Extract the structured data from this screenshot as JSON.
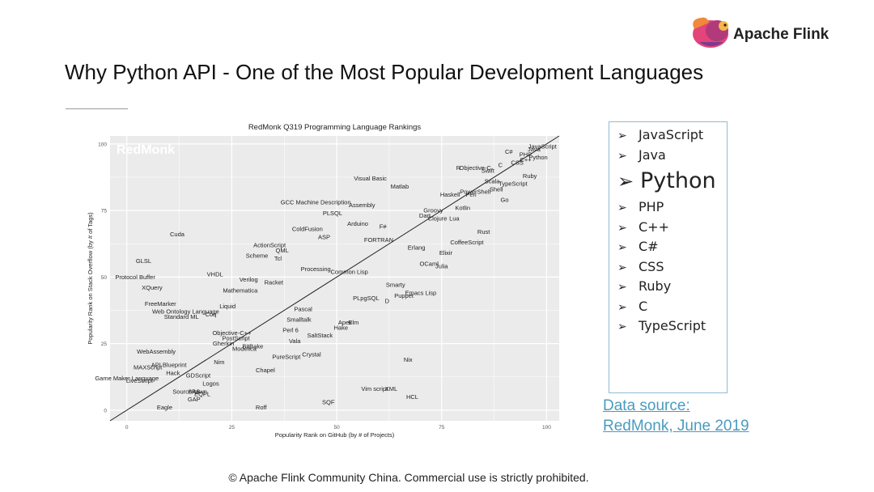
{
  "slide": {
    "title": "Why Python API - One of the Most Popular Development Languages",
    "logo_text": "Apache Flink",
    "languages": [
      "JavaScript",
      "Java",
      "Python",
      "PHP",
      "C++",
      "C#",
      "CSS",
      "Ruby",
      "C",
      "TypeScript"
    ],
    "highlight_language": "Python",
    "bullet_glyph": "➢",
    "source_line1": "Data source: ",
    "source_line2": "RedMonk, June 2019",
    "footer": "© Apache Flink Community China. Commercial use is strictly prohibited."
  },
  "chart_data": {
    "type": "scatter",
    "title": "RedMonk Q319 Programming Language Rankings",
    "watermark": "RedMonk",
    "xlabel": "Popularity Rank on GitHub (by # of Projects)",
    "ylabel": "Popularity Rank on Stack Overflow (by # of Tags)",
    "xlim": [
      -4,
      103
    ],
    "ylim": [
      -4,
      103
    ],
    "xticks": [
      0,
      25,
      50,
      75,
      100
    ],
    "yticks": [
      0,
      25,
      50,
      75,
      100
    ],
    "grid": true,
    "trend_line": {
      "from": [
        -4,
        -4
      ],
      "to": [
        103,
        103
      ]
    },
    "colors": {
      "panel": "#ebebeb",
      "grid": "#ffffff",
      "line": "#222222",
      "label": "#222222"
    },
    "points": [
      {
        "label": "JavaScript",
        "x": 99,
        "y": 99
      },
      {
        "label": "Java",
        "x": 97,
        "y": 98
      },
      {
        "label": "C#",
        "x": 91,
        "y": 97
      },
      {
        "label": "PHP",
        "x": 95,
        "y": 96
      },
      {
        "label": "Python",
        "x": 98,
        "y": 95
      },
      {
        "label": "CSS",
        "x": 93,
        "y": 93
      },
      {
        "label": "C++",
        "x": 95,
        "y": 94
      },
      {
        "label": "C",
        "x": 89,
        "y": 92
      },
      {
        "label": "R",
        "x": 79,
        "y": 91
      },
      {
        "label": "Objective-C",
        "x": 83,
        "y": 91
      },
      {
        "label": "Swift",
        "x": 86,
        "y": 90
      },
      {
        "label": "Ruby",
        "x": 96,
        "y": 88
      },
      {
        "label": "Scala",
        "x": 87,
        "y": 86
      },
      {
        "label": "TypeScript",
        "x": 92,
        "y": 85
      },
      {
        "label": "Shell",
        "x": 88,
        "y": 83
      },
      {
        "label": "PowerShell",
        "x": 83,
        "y": 82
      },
      {
        "label": "Perl",
        "x": 82,
        "y": 81
      },
      {
        "label": "Haskell",
        "x": 77,
        "y": 81
      },
      {
        "label": "Go",
        "x": 90,
        "y": 79
      },
      {
        "label": "Kotlin",
        "x": 80,
        "y": 76
      },
      {
        "label": "Groovy",
        "x": 73,
        "y": 75
      },
      {
        "label": "Dart",
        "x": 71,
        "y": 73
      },
      {
        "label": "Clojure",
        "x": 74,
        "y": 72
      },
      {
        "label": "Lua",
        "x": 78,
        "y": 72
      },
      {
        "label": "Rust",
        "x": 85,
        "y": 67
      },
      {
        "label": "CoffeeScript",
        "x": 81,
        "y": 63
      },
      {
        "label": "Elixir",
        "x": 76,
        "y": 59
      },
      {
        "label": "Erlang",
        "x": 69,
        "y": 61
      },
      {
        "label": "OCaml",
        "x": 72,
        "y": 55
      },
      {
        "label": "Julia",
        "x": 75,
        "y": 54
      },
      {
        "label": "Visual Basic",
        "x": 58,
        "y": 87
      },
      {
        "label": "Matlab",
        "x": 65,
        "y": 84
      },
      {
        "label": "GCC Machine Description",
        "x": 45,
        "y": 78
      },
      {
        "label": "Assembly",
        "x": 56,
        "y": 77
      },
      {
        "label": "PLSQL",
        "x": 49,
        "y": 74
      },
      {
        "label": "Arduino",
        "x": 55,
        "y": 70
      },
      {
        "label": "F#",
        "x": 61,
        "y": 69
      },
      {
        "label": "ColdFusion",
        "x": 43,
        "y": 68
      },
      {
        "label": "ASP",
        "x": 47,
        "y": 65
      },
      {
        "label": "FORTRAN",
        "x": 60,
        "y": 64
      },
      {
        "label": "ActionScript",
        "x": 34,
        "y": 62
      },
      {
        "label": "QML",
        "x": 37,
        "y": 60
      },
      {
        "label": "Scheme",
        "x": 31,
        "y": 58
      },
      {
        "label": "Tcl",
        "x": 36,
        "y": 57
      },
      {
        "label": "Cuda",
        "x": 12,
        "y": 66
      },
      {
        "label": "GLSL",
        "x": 4,
        "y": 56
      },
      {
        "label": "Processing",
        "x": 45,
        "y": 53
      },
      {
        "label": "Common Lisp",
        "x": 53,
        "y": 52
      },
      {
        "label": "VHDL",
        "x": 21,
        "y": 51
      },
      {
        "label": "Verilog",
        "x": 29,
        "y": 49
      },
      {
        "label": "Racket",
        "x": 35,
        "y": 48
      },
      {
        "label": "Protocol Buffer",
        "x": 2,
        "y": 50
      },
      {
        "label": "XQuery",
        "x": 6,
        "y": 46
      },
      {
        "label": "Mathematica",
        "x": 27,
        "y": 45
      },
      {
        "label": "Smarty",
        "x": 64,
        "y": 47
      },
      {
        "label": "Emacs Lisp",
        "x": 70,
        "y": 44
      },
      {
        "label": "Puppet",
        "x": 66,
        "y": 43
      },
      {
        "label": "PLpgSQL",
        "x": 57,
        "y": 42
      },
      {
        "label": "D",
        "x": 62,
        "y": 41
      },
      {
        "label": "FreeMarker",
        "x": 8,
        "y": 40
      },
      {
        "label": "Liquid",
        "x": 24,
        "y": 39
      },
      {
        "label": "Pascal",
        "x": 42,
        "y": 38
      },
      {
        "label": "Web Ontology Language",
        "x": 14,
        "y": 37
      },
      {
        "label": "Standard ML",
        "x": 13,
        "y": 35
      },
      {
        "label": "Coq",
        "x": 20,
        "y": 36
      },
      {
        "label": "Smalltalk",
        "x": 41,
        "y": 34
      },
      {
        "label": "Apex",
        "x": 52,
        "y": 33
      },
      {
        "label": "Elm",
        "x": 54,
        "y": 33
      },
      {
        "label": "Hake",
        "x": 51,
        "y": 31
      },
      {
        "label": "Perl 6",
        "x": 39,
        "y": 30
      },
      {
        "label": "SaltStack",
        "x": 46,
        "y": 28
      },
      {
        "label": "Objective-C++",
        "x": 25,
        "y": 29
      },
      {
        "label": "PostScript",
        "x": 26,
        "y": 27
      },
      {
        "label": "Vala",
        "x": 40,
        "y": 26
      },
      {
        "label": "Gherkin",
        "x": 23,
        "y": 25
      },
      {
        "label": "BitBake",
        "x": 30,
        "y": 24
      },
      {
        "label": "Modelica",
        "x": 28,
        "y": 23
      },
      {
        "label": "WebAssembly",
        "x": 7,
        "y": 22
      },
      {
        "label": "PureScript",
        "x": 38,
        "y": 20
      },
      {
        "label": "Crystal",
        "x": 44,
        "y": 21
      },
      {
        "label": "Nix",
        "x": 67,
        "y": 19
      },
      {
        "label": "Nim",
        "x": 22,
        "y": 18
      },
      {
        "label": "API Blueprint",
        "x": 10,
        "y": 17
      },
      {
        "label": "MAXScript",
        "x": 5,
        "y": 16
      },
      {
        "label": "Chapel",
        "x": 33,
        "y": 15
      },
      {
        "label": "Hack",
        "x": 11,
        "y": 14
      },
      {
        "label": "GDScript",
        "x": 17,
        "y": 13
      },
      {
        "label": "Game Maker Language",
        "x": 0,
        "y": 12
      },
      {
        "label": "LiveScript",
        "x": 3,
        "y": 11
      },
      {
        "label": "Logos",
        "x": 20,
        "y": 10
      },
      {
        "label": "Vim script",
        "x": 59,
        "y": 8
      },
      {
        "label": "XML",
        "x": 63,
        "y": 8
      },
      {
        "label": "SourcePawn",
        "x": 15,
        "y": 7
      },
      {
        "label": "SAS",
        "x": 16,
        "y": 7
      },
      {
        "label": "EQPL",
        "x": 18,
        "y": 6
      },
      {
        "label": "HCL",
        "x": 68,
        "y": 5
      },
      {
        "label": "GAP",
        "x": 16,
        "y": 4
      },
      {
        "label": "SQF",
        "x": 48,
        "y": 3
      },
      {
        "label": "Roff",
        "x": 32,
        "y": 1
      },
      {
        "label": "Eagle",
        "x": 9,
        "y": 1
      }
    ]
  }
}
